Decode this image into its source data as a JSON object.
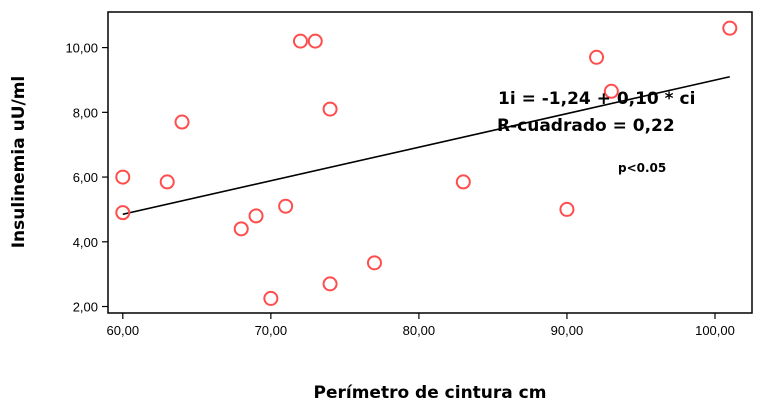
{
  "chart_data": {
    "type": "scatter",
    "xlabel": "Perímetro de cintura cm",
    "ylabel": "Insulinemia uU/ml",
    "xlim": [
      59,
      102.5
    ],
    "ylim": [
      1.8,
      11.1
    ],
    "x_ticks": [
      60,
      70,
      80,
      90,
      100
    ],
    "x_tick_labels": [
      "60,00",
      "70,00",
      "80,00",
      "90,00",
      "100,00"
    ],
    "y_ticks": [
      2,
      4,
      6,
      8,
      10
    ],
    "y_tick_labels": [
      "2,00",
      "4,00",
      "6,00",
      "8,00",
      "10,00"
    ],
    "grid": false,
    "point_color": "#ff4d4d",
    "points": [
      {
        "x": 60.0,
        "y": 6.0
      },
      {
        "x": 60.0,
        "y": 4.9
      },
      {
        "x": 63.0,
        "y": 5.85
      },
      {
        "x": 64.0,
        "y": 7.7
      },
      {
        "x": 68.0,
        "y": 4.4
      },
      {
        "x": 69.0,
        "y": 4.8
      },
      {
        "x": 70.0,
        "y": 2.25
      },
      {
        "x": 71.0,
        "y": 5.1
      },
      {
        "x": 72.0,
        "y": 10.2
      },
      {
        "x": 73.0,
        "y": 10.2
      },
      {
        "x": 74.0,
        "y": 8.1
      },
      {
        "x": 74.0,
        "y": 2.7
      },
      {
        "x": 77.0,
        "y": 3.35
      },
      {
        "x": 83.0,
        "y": 5.85
      },
      {
        "x": 90.0,
        "y": 5.0
      },
      {
        "x": 92.0,
        "y": 9.7
      },
      {
        "x": 93.0,
        "y": 8.65
      },
      {
        "x": 101.0,
        "y": 10.6
      }
    ],
    "regression_line": {
      "x_start": 60,
      "x_end": 101,
      "y_start": 4.85,
      "y_end": 9.1
    },
    "annotations": {
      "equation": "1i = -1,24 + 0,10 * ci",
      "r_squared": "R-cuadrado = 0,22",
      "p_value": "p<0.05"
    }
  }
}
